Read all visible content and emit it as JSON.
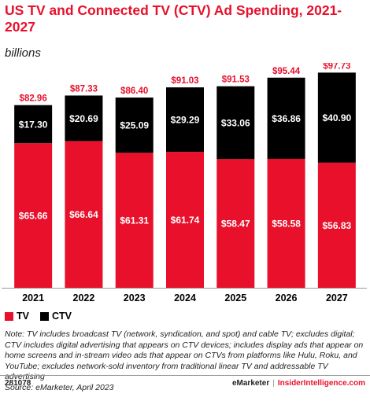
{
  "title": "US TV and Connected TV (CTV) Ad Spending, 2021-2027",
  "subtitle": "billions",
  "colors": {
    "tv": "#e8102b",
    "ctv": "#000000",
    "total_label": "#e8102b"
  },
  "chart_data": {
    "type": "bar",
    "stacked": true,
    "categories": [
      "2021",
      "2022",
      "2023",
      "2024",
      "2025",
      "2026",
      "2027"
    ],
    "series": [
      {
        "name": "TV",
        "color": "#e8102b",
        "values": [
          65.66,
          66.64,
          61.31,
          61.74,
          58.47,
          58.58,
          56.83
        ],
        "labels": [
          "$65.66",
          "$66.64",
          "$61.31",
          "$61.74",
          "$58.47",
          "$58.58",
          "$56.83"
        ]
      },
      {
        "name": "CTV",
        "color": "#000000",
        "values": [
          17.3,
          20.69,
          25.09,
          29.29,
          33.06,
          36.86,
          40.9
        ],
        "labels": [
          "$17.30",
          "$20.69",
          "$25.09",
          "$29.29",
          "$33.06",
          "$36.86",
          "$40.90"
        ]
      }
    ],
    "totals": [
      82.96,
      87.33,
      86.4,
      91.03,
      91.53,
      95.44,
      97.73
    ],
    "total_labels": [
      "$82.96",
      "$87.33",
      "$86.40",
      "$91.03",
      "$91.53",
      "$95.44",
      "$97.73"
    ],
    "ylim": [
      0,
      100
    ],
    "legend_position": "bottom-left"
  },
  "legend": [
    {
      "label": "TV",
      "color": "#e8102b"
    },
    {
      "label": "CTV",
      "color": "#000000"
    }
  ],
  "note": "Note: TV includes broadcast TV (network, syndication, and spot) and cable TV; excludes digital; CTV includes digital advertising that appears on CTV devices; includes display ads that appear on home screens and in-stream video ads that appear on CTVs from platforms like Hulu, Roku, and YouTube; excludes network-sold inventory from traditional linear TV and addressable TV advertising",
  "source": "Source: eMarketer, April 2023",
  "footer": {
    "id": "281078",
    "brand": "eMarketer",
    "separator": "|",
    "site": "InsiderIntelligence.com"
  }
}
